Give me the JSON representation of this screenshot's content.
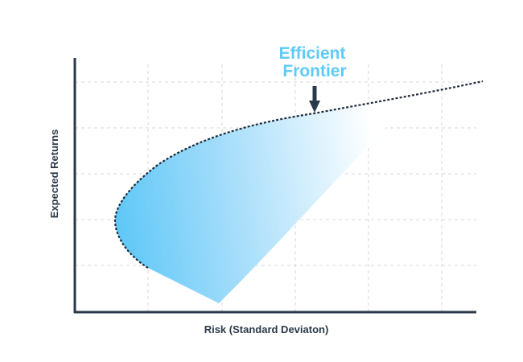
{
  "figure": {
    "annotation_lines": [
      "Efficient",
      "Frontier"
    ],
    "x_axis_label": "Risk (Standard Deviaton)",
    "y_axis_label": "Expected Returns"
  },
  "colors": {
    "annotation": "#5ecbf7",
    "gradient_start": "#60c8f7",
    "gradient_end": "#ffffff",
    "axis": "#2b3a4a",
    "frontier_curve": "#1f2d3d",
    "grid": "#d3d7dc",
    "arrow": "#2b3a4a"
  }
}
